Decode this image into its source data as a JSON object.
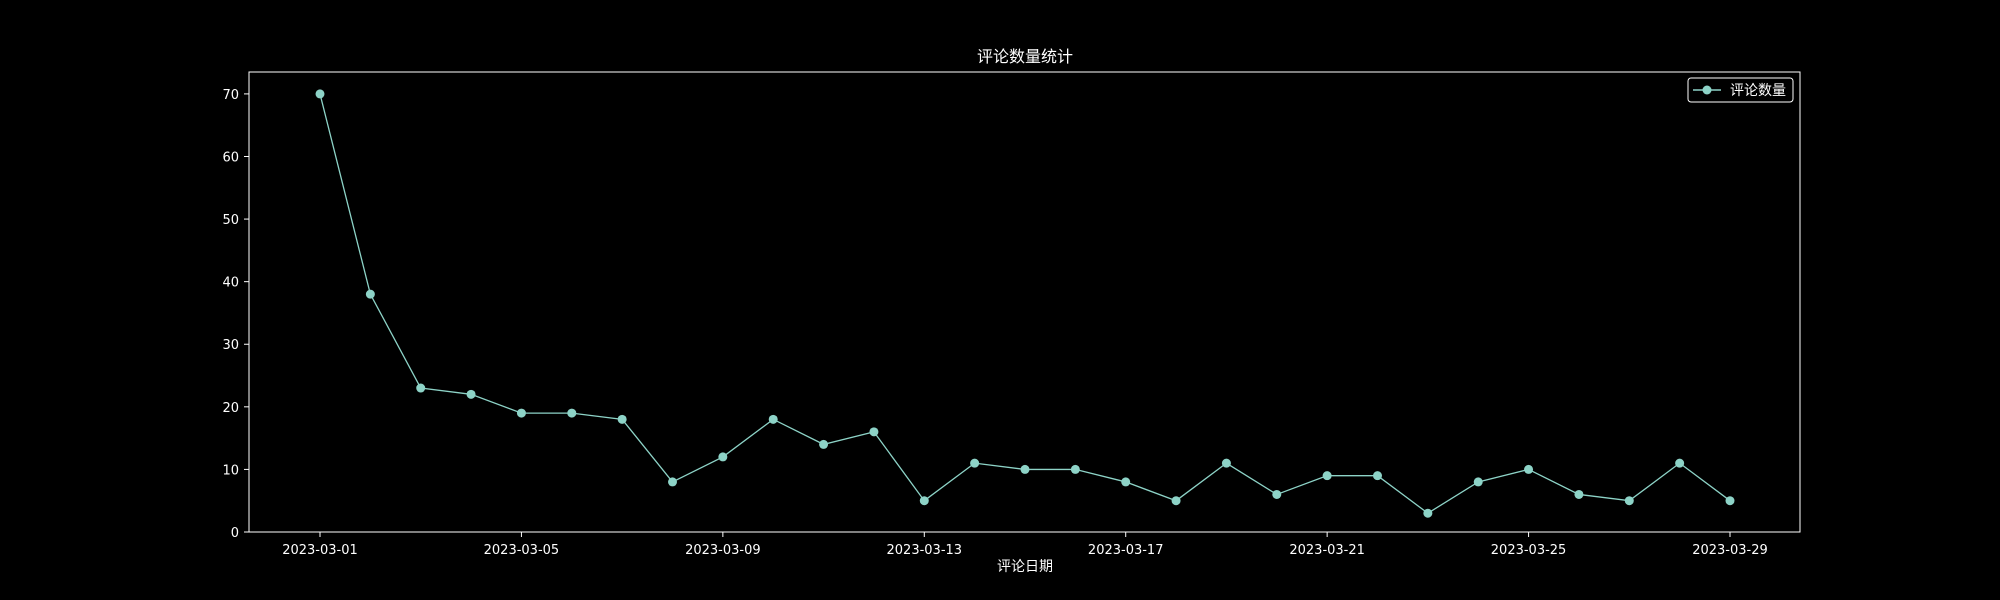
{
  "chart_data": {
    "type": "line",
    "title": "评论数量统计",
    "xlabel": "评论日期",
    "ylabel": "",
    "x": [
      "2023-03-01",
      "2023-03-02",
      "2023-03-03",
      "2023-03-04",
      "2023-03-05",
      "2023-03-06",
      "2023-03-07",
      "2023-03-08",
      "2023-03-09",
      "2023-03-10",
      "2023-03-11",
      "2023-03-12",
      "2023-03-13",
      "2023-03-14",
      "2023-03-15",
      "2023-03-16",
      "2023-03-17",
      "2023-03-18",
      "2023-03-19",
      "2023-03-20",
      "2023-03-21",
      "2023-03-22",
      "2023-03-23",
      "2023-03-24",
      "2023-03-25",
      "2023-03-26",
      "2023-03-27",
      "2023-03-28",
      "2023-03-29"
    ],
    "series": [
      {
        "name": "评论数量",
        "values": [
          70,
          38,
          23,
          22,
          19,
          19,
          18,
          8,
          12,
          18,
          14,
          16,
          5,
          11,
          10,
          10,
          8,
          5,
          11,
          6,
          9,
          9,
          3,
          8,
          10,
          6,
          5,
          11,
          5
        ]
      }
    ],
    "xticks": [
      "2023-03-01",
      "2023-03-05",
      "2023-03-09",
      "2023-03-13",
      "2023-03-17",
      "2023-03-21",
      "2023-03-25",
      "2023-03-29"
    ],
    "yticks": [
      0,
      10,
      20,
      30,
      40,
      50,
      60,
      70
    ],
    "ylim": [
      0,
      73.5
    ],
    "grid": false,
    "legend": "top-right",
    "colors": {
      "background": "#000000",
      "series": "#8dd3c7",
      "axes": "#ffffff",
      "text": "#ffffff"
    }
  }
}
